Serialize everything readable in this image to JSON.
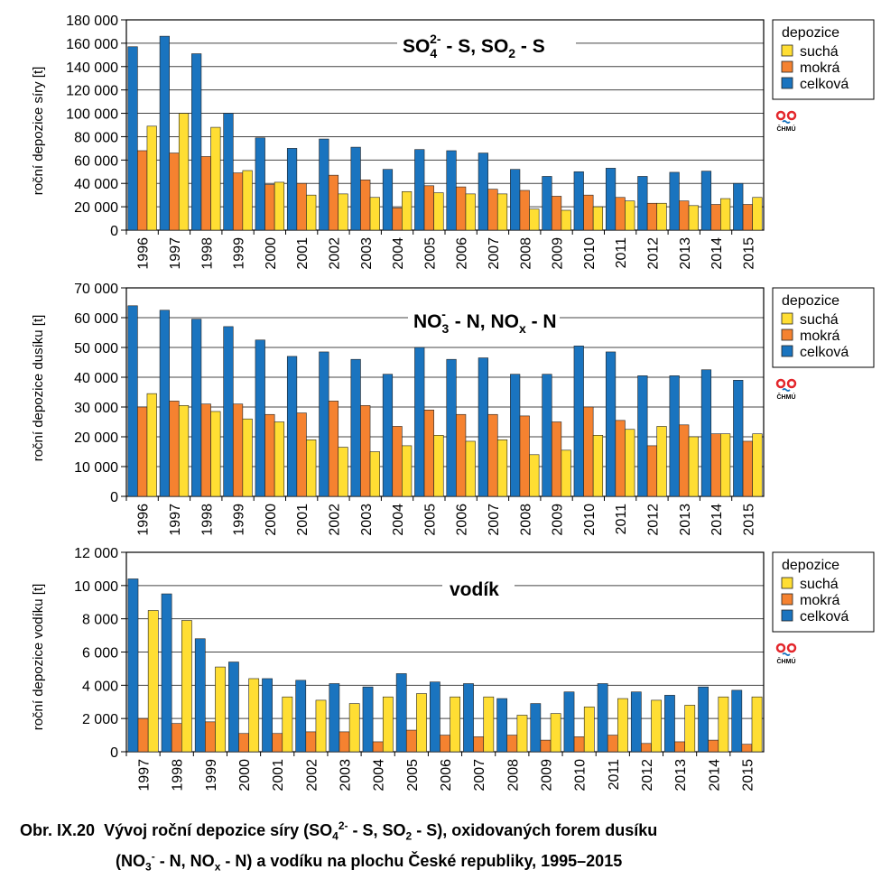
{
  "legend": {
    "title": "depozice",
    "items": [
      {
        "key": "dry",
        "label": "suchá",
        "color": "#ffde33"
      },
      {
        "key": "wet",
        "label": "mokrá",
        "color": "#f58230"
      },
      {
        "key": "total",
        "label": "celková",
        "color": "#1a74bf"
      }
    ]
  },
  "logo_text": "ČHMÚ",
  "caption": {
    "prefix": "Obr. IX.20",
    "line1a": "Vývoj roční depozice síry (SO",
    "line1_sub": "4",
    "line1_sup": "2-",
    "line1b": " - S, SO",
    "line1_sub2": "2",
    "line1c": " - S), oxidovaných forem dusíku",
    "line2a": "(NO",
    "line2_sub": "3",
    "line2_sup": "-",
    "line2b": " - N, NO",
    "line2_sub2": "x",
    "line2c": " - N) a vodíku na plochu České republiky, 1995–2015"
  },
  "chart_data": [
    {
      "type": "bar",
      "title": "SO4 2- - S, SO2 - S",
      "ylabel": "roční depozice síry [t]",
      "ylim": [
        0,
        180000
      ],
      "yticks": [
        0,
        20000,
        40000,
        60000,
        80000,
        100000,
        120000,
        140000,
        160000,
        180000
      ],
      "ytick_labels": [
        "0",
        "20 000",
        "40 000",
        "60 000",
        "80 000",
        "100 000",
        "120 000",
        "140 000",
        "160 000",
        "180 000"
      ],
      "categories": [
        "1996",
        "1997",
        "1998",
        "1999",
        "2000",
        "2001",
        "2002",
        "2003",
        "2004",
        "2005",
        "2006",
        "2007",
        "2008",
        "2009",
        "2010",
        "2011",
        "2012",
        "2013",
        "2014",
        "2015"
      ],
      "series": [
        {
          "name": "celková",
          "key": "total",
          "values": [
            157000,
            166000,
            151000,
            100000,
            79000,
            70000,
            78000,
            71000,
            52000,
            69000,
            68000,
            66000,
            52000,
            46000,
            50000,
            53000,
            46000,
            49500,
            50500,
            40000
          ]
        },
        {
          "name": "mokrá",
          "key": "wet",
          "values": [
            68000,
            66000,
            63000,
            49000,
            39000,
            40000,
            47000,
            43000,
            19000,
            38000,
            37000,
            35000,
            34000,
            29000,
            30000,
            28000,
            23000,
            25000,
            22000,
            22000
          ]
        },
        {
          "name": "suchá",
          "key": "dry",
          "values": [
            89000,
            100000,
            88000,
            51000,
            41000,
            30000,
            31000,
            28000,
            33000,
            32000,
            31000,
            31000,
            18000,
            17000,
            20000,
            25000,
            23000,
            21000,
            27000,
            28000
          ]
        }
      ],
      "series_order": [
        "total",
        "wet",
        "dry"
      ]
    },
    {
      "type": "bar",
      "title": "NO3 - - N, NOx - N",
      "ylabel": "roční depozice dusíku [t]",
      "ylim": [
        0,
        70000
      ],
      "yticks": [
        0,
        10000,
        20000,
        30000,
        40000,
        50000,
        60000,
        70000
      ],
      "ytick_labels": [
        "0",
        "10 000",
        "20 000",
        "30 000",
        "40 000",
        "50 000",
        "60 000",
        "70 000"
      ],
      "categories": [
        "1996",
        "1997",
        "1998",
        "1999",
        "2000",
        "2001",
        "2002",
        "2003",
        "2004",
        "2005",
        "2006",
        "2007",
        "2008",
        "2009",
        "2010",
        "2011",
        "2012",
        "2013",
        "2014",
        "2015"
      ],
      "series": [
        {
          "name": "celková",
          "key": "total",
          "values": [
            64000,
            62500,
            59500,
            57000,
            52500,
            47000,
            48500,
            46000,
            41000,
            50000,
            46000,
            46500,
            41000,
            41000,
            50500,
            48500,
            40500,
            40500,
            42500,
            39000
          ]
        },
        {
          "name": "mokrá",
          "key": "wet",
          "values": [
            30000,
            32000,
            31000,
            31000,
            27500,
            28000,
            32000,
            30500,
            23500,
            29000,
            27500,
            27500,
            27000,
            25000,
            30000,
            25500,
            17000,
            24000,
            21000,
            18500
          ]
        },
        {
          "name": "suchá",
          "key": "dry",
          "values": [
            34500,
            30500,
            28500,
            26000,
            25000,
            19000,
            16500,
            15000,
            17000,
            20500,
            18500,
            19000,
            14000,
            15500,
            20500,
            22500,
            23500,
            20000,
            21000,
            21000
          ]
        }
      ],
      "series_order": [
        "total",
        "wet",
        "dry"
      ]
    },
    {
      "type": "bar",
      "title": "vodík",
      "ylabel": "roční depozice vodíku [t]",
      "ylim": [
        0,
        12000
      ],
      "yticks": [
        0,
        2000,
        4000,
        6000,
        8000,
        10000,
        12000
      ],
      "ytick_labels": [
        "0",
        "2 000",
        "4 000",
        "6 000",
        "8 000",
        "10 000",
        "12 000"
      ],
      "categories": [
        "1997",
        "1998",
        "1999",
        "2000",
        "2001",
        "2002",
        "2003",
        "2004",
        "2005",
        "2006",
        "2007",
        "2008",
        "2009",
        "2010",
        "2011",
        "2012",
        "2013",
        "2014",
        "2015"
      ],
      "series": [
        {
          "name": "celková",
          "key": "total",
          "values": [
            10400,
            9500,
            6800,
            5400,
            4400,
            4300,
            4100,
            3900,
            4700,
            4200,
            4100,
            3200,
            2900,
            3600,
            4100,
            3600,
            3400,
            3900,
            3700
          ]
        },
        {
          "name": "mokrá",
          "key": "wet",
          "values": [
            2000,
            1700,
            1800,
            1100,
            1100,
            1200,
            1200,
            600,
            1300,
            1000,
            900,
            1000,
            700,
            900,
            1000,
            500,
            600,
            700,
            450
          ]
        },
        {
          "name": "suchá",
          "key": "dry",
          "values": [
            8500,
            7900,
            5100,
            4400,
            3300,
            3100,
            2900,
            3300,
            3500,
            3300,
            3300,
            2200,
            2300,
            2700,
            3200,
            3100,
            2800,
            3300,
            3300
          ]
        }
      ],
      "series_order": [
        "total",
        "wet",
        "dry"
      ]
    }
  ]
}
